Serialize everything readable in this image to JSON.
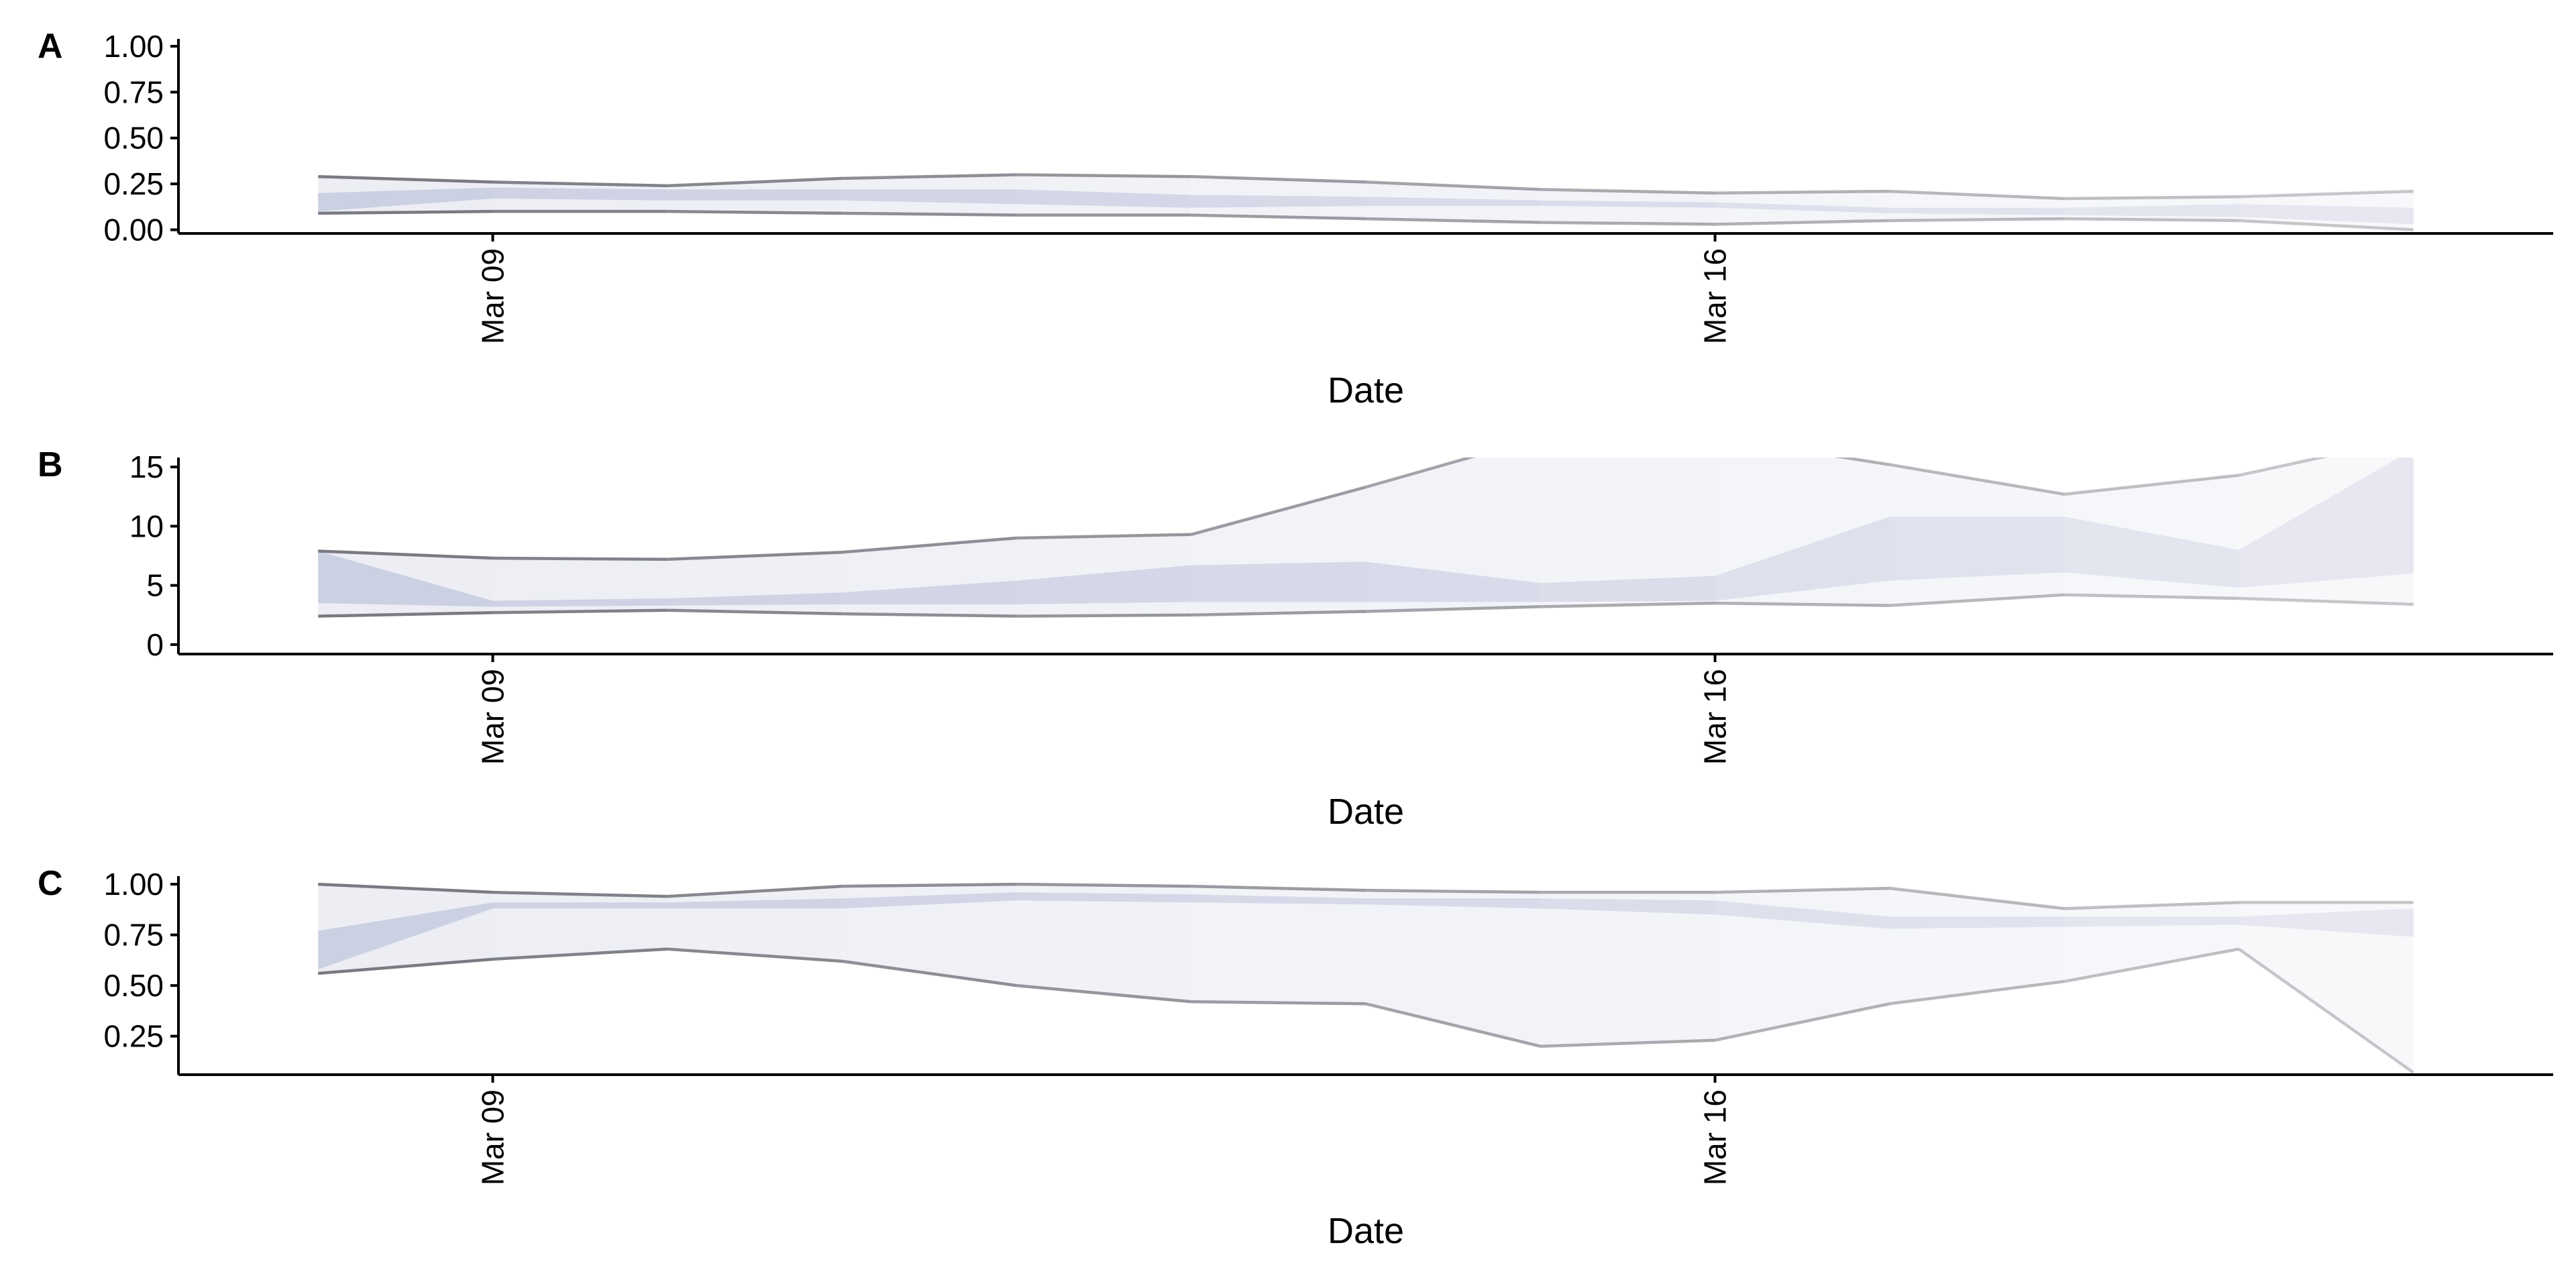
{
  "chart_data": [
    {
      "panel": "A",
      "type": "area",
      "xlabel": "Date",
      "ylabel": "",
      "x_tick_labels": [
        "Mar 09",
        "Mar 16"
      ],
      "x_ticks_day": [
        9,
        16
      ],
      "xlim_day": [
        7.2,
        20.8
      ],
      "ylim": [
        -0.02,
        1.04
      ],
      "y_ticks": [
        0.0,
        0.25,
        0.5,
        0.75,
        1.0
      ],
      "y_tick_labels": [
        "0.00",
        "0.25",
        "0.50",
        "0.75",
        "1.00"
      ],
      "x_day": [
        8,
        9,
        10,
        11,
        12,
        13,
        14,
        15,
        16,
        17,
        18,
        19,
        20
      ],
      "upper": [
        0.29,
        0.26,
        0.24,
        0.28,
        0.3,
        0.29,
        0.26,
        0.22,
        0.2,
        0.21,
        0.17,
        0.18,
        0.21
      ],
      "lower": [
        0.09,
        0.1,
        0.1,
        0.09,
        0.08,
        0.08,
        0.06,
        0.04,
        0.03,
        0.05,
        0.06,
        0.05,
        0.0
      ],
      "inner_upper": [
        0.2,
        0.23,
        0.22,
        0.22,
        0.22,
        0.19,
        0.18,
        0.16,
        0.15,
        0.12,
        0.12,
        0.14,
        0.12
      ],
      "inner_lower": [
        0.1,
        0.17,
        0.16,
        0.16,
        0.14,
        0.12,
        0.13,
        0.13,
        0.12,
        0.09,
        0.08,
        0.07,
        0.03
      ]
    },
    {
      "panel": "B",
      "type": "area",
      "xlabel": "Date",
      "ylabel": "",
      "x_tick_labels": [
        "Mar 09",
        "Mar 16"
      ],
      "x_ticks_day": [
        9,
        16
      ],
      "xlim_day": [
        7.2,
        20.8
      ],
      "ylim": [
        -0.8,
        15.8
      ],
      "y_ticks": [
        0,
        5,
        10,
        15
      ],
      "y_tick_labels": [
        "0",
        "5",
        "10",
        "15"
      ],
      "x_day": [
        8,
        9,
        10,
        11,
        12,
        13,
        14,
        15,
        16,
        17,
        18,
        19,
        20
      ],
      "upper": [
        7.9,
        7.3,
        7.2,
        7.8,
        9.0,
        9.3,
        13.3,
        17.5,
        17.5,
        15.2,
        12.7,
        14.3,
        17.5
      ],
      "lower": [
        2.4,
        2.7,
        2.9,
        2.6,
        2.4,
        2.5,
        2.8,
        3.2,
        3.5,
        3.3,
        4.2,
        3.9,
        3.4
      ],
      "inner_upper": [
        7.9,
        3.7,
        3.9,
        4.4,
        5.4,
        6.7,
        7.0,
        5.2,
        5.8,
        10.8,
        10.8,
        8.0,
        16.5
      ],
      "inner_lower": [
        3.5,
        3.2,
        3.3,
        3.4,
        3.4,
        3.6,
        3.6,
        3.6,
        3.7,
        5.4,
        6.1,
        4.8,
        6.0
      ]
    },
    {
      "panel": "C",
      "type": "area",
      "xlabel": "Date",
      "ylabel": "",
      "x_tick_labels": [
        "Mar 09",
        "Mar 16"
      ],
      "x_ticks_day": [
        9,
        16
      ],
      "xlim_day": [
        7.2,
        20.8
      ],
      "ylim": [
        0.06,
        1.04
      ],
      "y_ticks": [
        0.25,
        0.5,
        0.75,
        1.0
      ],
      "y_tick_labels": [
        "0.25",
        "0.50",
        "0.75",
        "1.00"
      ],
      "x_day": [
        8,
        9,
        10,
        11,
        12,
        13,
        14,
        15,
        16,
        17,
        18,
        19,
        20
      ],
      "upper": [
        1.0,
        0.96,
        0.94,
        0.99,
        1.0,
        0.99,
        0.97,
        0.96,
        0.96,
        0.98,
        0.88,
        0.91,
        0.91
      ],
      "lower": [
        0.56,
        0.63,
        0.68,
        0.62,
        0.5,
        0.42,
        0.41,
        0.2,
        0.23,
        0.41,
        0.52,
        0.68,
        0.07
      ],
      "inner_upper": [
        0.77,
        0.91,
        0.91,
        0.93,
        0.96,
        0.95,
        0.93,
        0.93,
        0.92,
        0.84,
        0.84,
        0.84,
        0.88
      ],
      "inner_lower": [
        0.58,
        0.88,
        0.88,
        0.88,
        0.92,
        0.91,
        0.9,
        0.88,
        0.85,
        0.78,
        0.79,
        0.8,
        0.74
      ]
    }
  ],
  "colors": {
    "outer_band": "#eceef4",
    "inner_band": "#c8cce0",
    "line_start": "#7a7a82",
    "axis": "#000000"
  }
}
